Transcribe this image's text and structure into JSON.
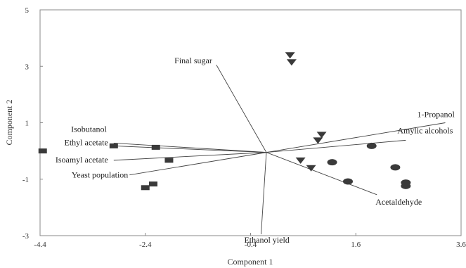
{
  "chart_data": {
    "type": "scatter",
    "title": "",
    "xlabel": "Component 1",
    "ylabel": "Component 2",
    "xlim": [
      -4.4,
      3.6
    ],
    "ylim": [
      -3,
      5
    ],
    "xticks": [
      -4.4,
      -2.4,
      -0.4,
      1.6,
      3.6
    ],
    "xtick_labels": [
      "-4.4",
      "-2.4",
      "-0.4",
      "1.6",
      "3.6"
    ],
    "yticks": [
      -3,
      -1,
      1,
      3,
      5
    ],
    "ytick_labels": [
      "-3",
      "-1",
      "1",
      "3",
      "5"
    ],
    "grid": false,
    "vector_origin": [
      -0.1,
      -0.05
    ],
    "vectors": [
      {
        "label": "Final sugar",
        "x": -1.05,
        "y": 3.05
      },
      {
        "label": "1-Propanol",
        "x": 3.3,
        "y": 1.0
      },
      {
        "label": "Amylic alcohols",
        "x": 2.55,
        "y": 0.38
      },
      {
        "label": "Isobutanol",
        "x": -3.0,
        "y": 0.28
      },
      {
        "label": "Ethyl acetate",
        "x": -3.0,
        "y": 0.18
      },
      {
        "label": "Isoamyl acetate",
        "x": -3.0,
        "y": -0.33
      },
      {
        "label": "Yeast population",
        "x": -2.7,
        "y": -0.85
      },
      {
        "label": "Acetaldehyde",
        "x": 2.0,
        "y": -1.55
      },
      {
        "label": "Ethanol yield",
        "x": -0.2,
        "y": -2.95
      }
    ],
    "series": [
      {
        "marker": "square",
        "points": [
          [
            -4.35,
            0.0
          ],
          [
            -3.0,
            0.18
          ],
          [
            -2.2,
            0.13
          ],
          [
            -1.95,
            -0.33
          ],
          [
            -2.4,
            -1.3
          ],
          [
            -2.25,
            -1.17
          ]
        ]
      },
      {
        "marker": "triangle-down",
        "points": [
          [
            0.35,
            3.4
          ],
          [
            0.38,
            3.15
          ],
          [
            0.95,
            0.58
          ],
          [
            0.88,
            0.38
          ],
          [
            0.55,
            -0.33
          ],
          [
            0.75,
            -0.6
          ]
        ]
      },
      {
        "marker": "ellipse",
        "points": [
          [
            1.15,
            -0.4
          ],
          [
            1.45,
            -1.08
          ],
          [
            1.9,
            0.18
          ],
          [
            2.35,
            -0.58
          ],
          [
            2.55,
            -1.12
          ],
          [
            2.55,
            -1.24
          ]
        ]
      }
    ]
  }
}
